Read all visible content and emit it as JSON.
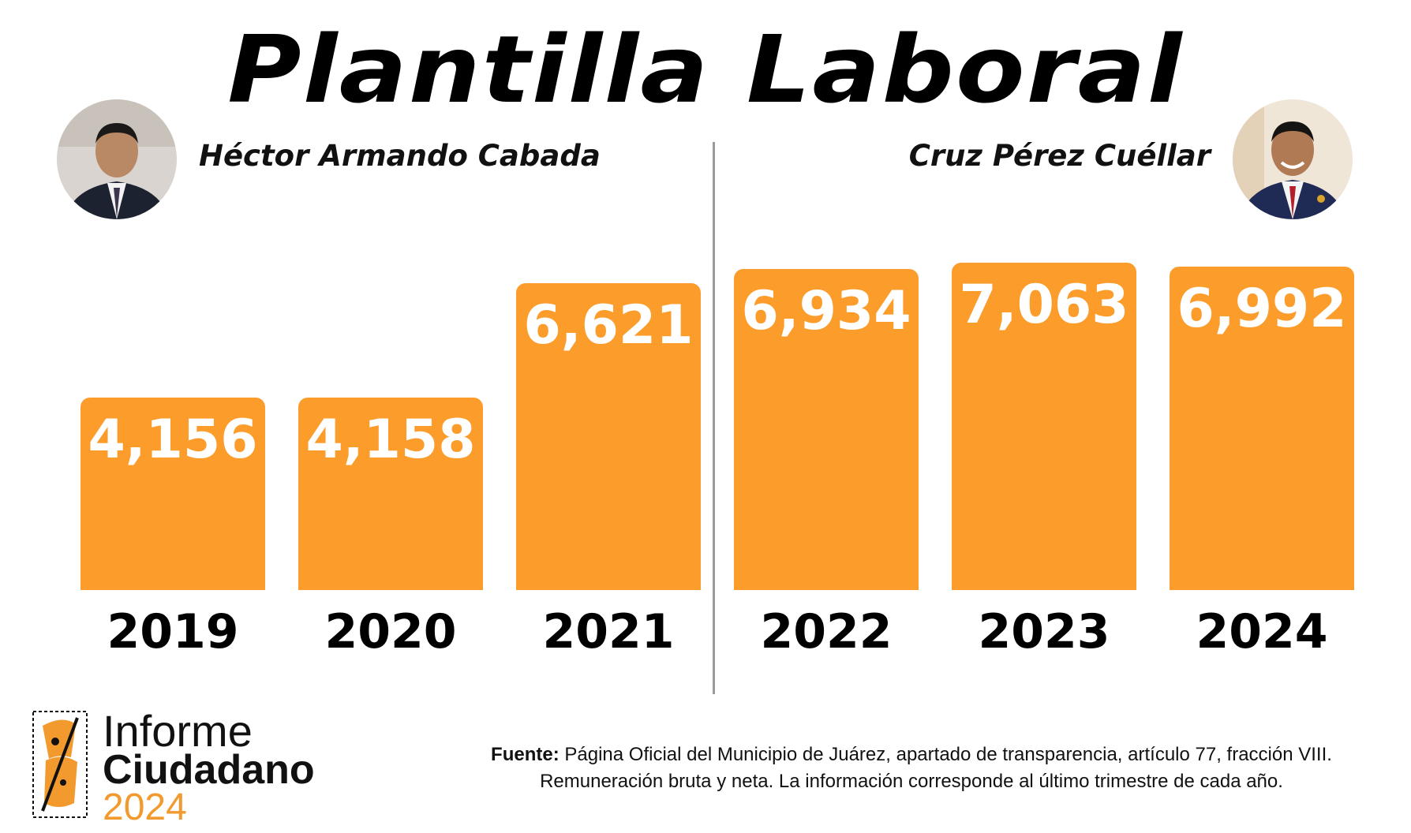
{
  "title": "Plantilla Laboral",
  "people": {
    "left": {
      "name": "Héctor Armando Cabada"
    },
    "right": {
      "name": "Cruz Pérez Cuéllar"
    }
  },
  "chart_data": {
    "type": "bar",
    "title": "Plantilla Laboral",
    "categories": [
      "2019",
      "2020",
      "2021",
      "2022",
      "2023",
      "2024"
    ],
    "values": [
      4156,
      4158,
      6621,
      6934,
      7063,
      6992
    ],
    "value_labels": [
      "4,156",
      "4,158",
      "6,621",
      "6,934",
      "7,063",
      "6,992"
    ],
    "groups": [
      {
        "name": "Héctor Armando Cabada",
        "categories": [
          "2019",
          "2020",
          "2021"
        ]
      },
      {
        "name": "Cruz Pérez Cuéllar",
        "categories": [
          "2022",
          "2023",
          "2024"
        ]
      }
    ],
    "xlabel": "",
    "ylabel": "",
    "colors": {
      "bar": "#fb9c2b",
      "label": "#ffffff"
    }
  },
  "logo": {
    "line1": "Informe",
    "line2": "Ciudadano",
    "line3": "2024",
    "accent": "#f29a2e"
  },
  "source": {
    "label": "Fuente:",
    "text1": " Página Oficial del Municipio de Juárez, apartado de transparencia, artículo 77, fracción VIII.",
    "text2": "Remuneración bruta y neta. La información corresponde al último trimestre de cada año."
  }
}
